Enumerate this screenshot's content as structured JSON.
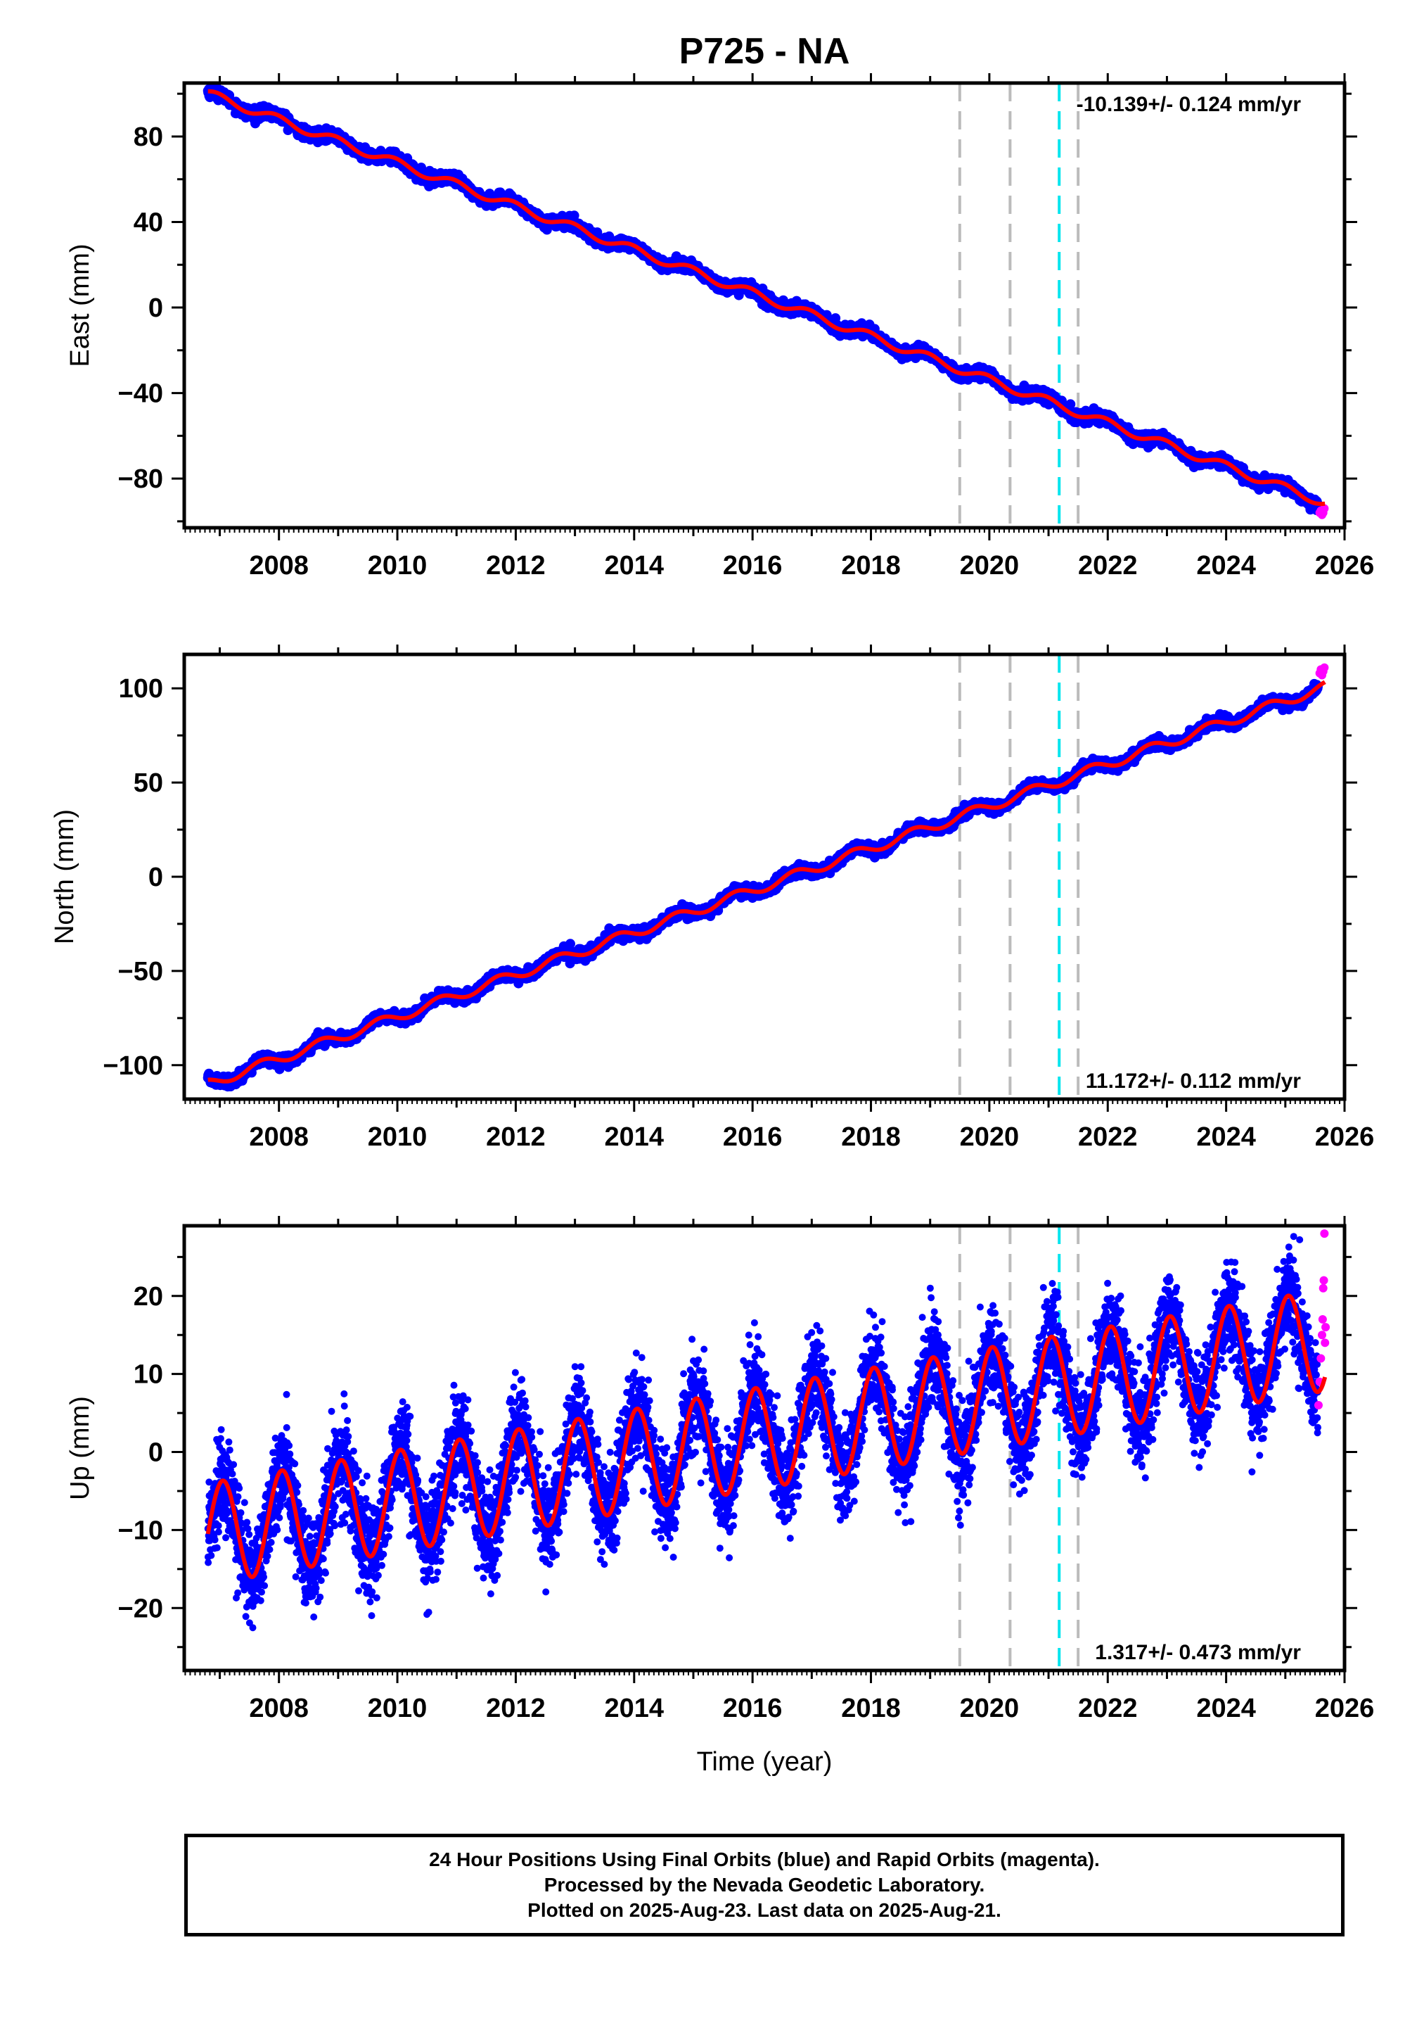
{
  "title": "P725 - NA",
  "colors": {
    "final_orbits": "#0000ff",
    "rapid_orbits": "#ff00ff",
    "model_fit": "#ff0000",
    "event_line": "#bbbbbb",
    "equipment_line": "#00e5ee"
  },
  "chart_data": [
    {
      "type": "scatter",
      "name": "east",
      "ylabel": "East (mm)",
      "xlabel": "",
      "xlim": [
        2006.4,
        2026.0
      ],
      "ylim": [
        -103,
        105
      ],
      "yticks": [
        80,
        40,
        0,
        -40,
        -80
      ],
      "yticks_minor_step": 20,
      "xticks": [
        2008,
        2010,
        2012,
        2014,
        2016,
        2018,
        2020,
        2022,
        2024,
        2026
      ],
      "xtick_labels": [
        "2008",
        "2010",
        "2012",
        "2014",
        "2016",
        "2018",
        "2020",
        "2022",
        "2024",
        "2026"
      ],
      "rate_text": "-10.139+/- 0.124 mm/yr",
      "rate_position": "top-right",
      "trend": {
        "t0": 2006.8,
        "y0": 100.0,
        "rate": -10.139,
        "seasonal_amplitude": 2.0,
        "seasonal_phase": 0.6,
        "noise": 1.3
      },
      "rapid_points": [
        [
          2025.58,
          -96
        ],
        [
          2025.6,
          -95
        ],
        [
          2025.62,
          -97
        ],
        [
          2025.64,
          -96
        ],
        [
          2025.66,
          -94
        ]
      ],
      "vertical_lines_gray": [
        2019.5,
        2020.35,
        2021.5
      ],
      "vertical_line_cyan": 2021.18
    },
    {
      "type": "scatter",
      "name": "north",
      "ylabel": "North (mm)",
      "xlabel": "",
      "xlim": [
        2006.4,
        2026.0
      ],
      "ylim": [
        -118,
        118
      ],
      "yticks": [
        100,
        50,
        0,
        -50,
        -100
      ],
      "yticks_minor_step": 25,
      "xticks": [
        2008,
        2010,
        2012,
        2014,
        2016,
        2018,
        2020,
        2022,
        2024,
        2026
      ],
      "xtick_labels": [
        "2008",
        "2010",
        "2012",
        "2014",
        "2016",
        "2018",
        "2020",
        "2022",
        "2024",
        "2026"
      ],
      "rate_text": "11.172+/- 0.112 mm/yr",
      "rate_position": "bottom-right",
      "trend": {
        "t0": 2006.8,
        "y0": -110.0,
        "rate": 11.172,
        "seasonal_amplitude": 2.6,
        "seasonal_phase": 2.1,
        "noise": 1.4
      },
      "rapid_points": [
        [
          2025.58,
          108
        ],
        [
          2025.6,
          110
        ],
        [
          2025.62,
          107
        ],
        [
          2025.64,
          109
        ],
        [
          2025.66,
          111
        ]
      ],
      "vertical_lines_gray": [
        2019.5,
        2020.35,
        2021.5
      ],
      "vertical_line_cyan": 2021.18
    },
    {
      "type": "scatter",
      "name": "up",
      "ylabel": "Up (mm)",
      "xlabel": "Time (year)",
      "xlim": [
        2006.4,
        2026.0
      ],
      "ylim": [
        -28,
        29
      ],
      "yticks": [
        20,
        10,
        0,
        -10,
        -20
      ],
      "yticks_minor_step": 5,
      "xticks": [
        2008,
        2010,
        2012,
        2014,
        2016,
        2018,
        2020,
        2022,
        2024,
        2026
      ],
      "xtick_labels": [
        "2008",
        "2010",
        "2012",
        "2014",
        "2016",
        "2018",
        "2020",
        "2022",
        "2024",
        "2026"
      ],
      "rate_text": "1.317+/- 0.473 mm/yr",
      "rate_position": "bottom-right",
      "trend": {
        "t0": 2006.8,
        "y0": -10.5,
        "rate": 1.317,
        "seasonal_amplitude": 6.5,
        "seasonal_phase": 0.0,
        "noise": 3.0
      },
      "rapid_points": [
        [
          2025.56,
          6
        ],
        [
          2025.58,
          9
        ],
        [
          2025.6,
          12
        ],
        [
          2025.62,
          15
        ],
        [
          2025.63,
          17
        ],
        [
          2025.64,
          21
        ],
        [
          2025.65,
          22
        ],
        [
          2025.66,
          28
        ],
        [
          2025.67,
          14
        ],
        [
          2025.68,
          16
        ]
      ],
      "vertical_lines_gray": [
        2019.5,
        2020.35,
        2021.5
      ],
      "vertical_line_cyan": 2021.18
    }
  ],
  "footer": {
    "line1": "24 Hour Positions Using Final Orbits (blue) and Rapid Orbits (magenta).",
    "line2": "Processed by the Nevada Geodetic Laboratory.",
    "line3": "Plotted on 2025-Aug-23. Last data on 2025-Aug-21."
  }
}
